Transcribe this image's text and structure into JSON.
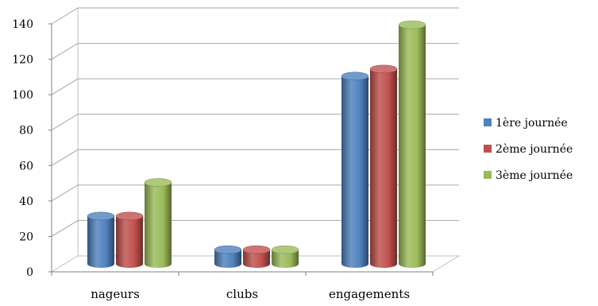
{
  "chart_data": {
    "type": "bar",
    "style": "3d-cylinder",
    "categories": [
      "nageurs",
      "clubs",
      "engagements"
    ],
    "series": [
      {
        "name": "1ère journée",
        "values": [
          27,
          8,
          106
        ],
        "color": "#4f81bd"
      },
      {
        "name": "2ème journée",
        "values": [
          27,
          8,
          110
        ],
        "color": "#c0504d"
      },
      {
        "name": "3ème journée",
        "values": [
          46,
          8,
          135
        ],
        "color": "#9bbb59"
      }
    ],
    "yticks": [
      "0",
      "20",
      "40",
      "60",
      "80",
      "100",
      "120",
      "140"
    ],
    "ylim": [
      0,
      140
    ],
    "grid": true,
    "legend_position": "right",
    "title": "",
    "xlabel": "",
    "ylabel": ""
  }
}
